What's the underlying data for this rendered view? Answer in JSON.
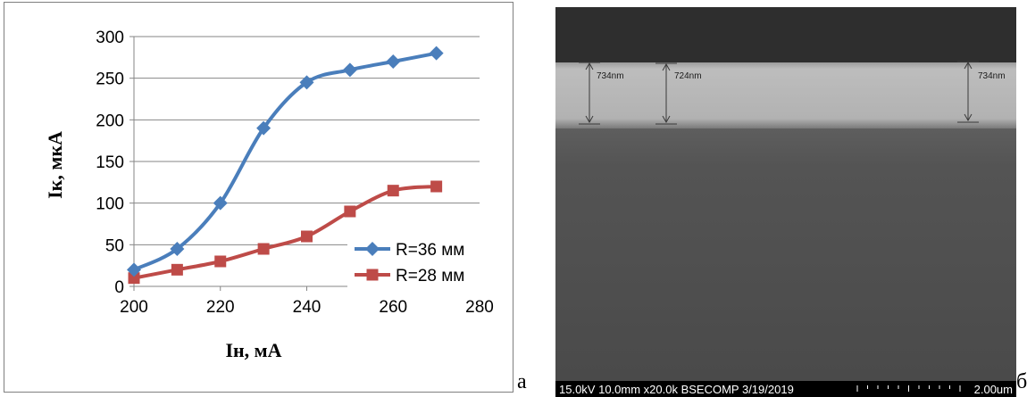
{
  "chart_data": {
    "type": "line",
    "x": [
      200,
      210,
      220,
      230,
      240,
      250,
      260,
      270
    ],
    "series": [
      {
        "name": "R=36 мм",
        "color": "#4a7ebb",
        "marker": "diamond",
        "values": [
          20,
          45,
          100,
          190,
          245,
          260,
          270,
          280
        ]
      },
      {
        "name": "R=28 мм",
        "color": "#be4b48",
        "marker": "square",
        "values": [
          10,
          20,
          30,
          45,
          60,
          90,
          115,
          120
        ]
      }
    ],
    "xlabel": "Iн, мА",
    "ylabel": "Iк, мкА",
    "xlim": [
      200,
      280
    ],
    "ylim": [
      0,
      300
    ],
    "xticks": [
      200,
      220,
      240,
      260,
      280
    ],
    "yticks": [
      0,
      50,
      100,
      150,
      200,
      250,
      300
    ],
    "grid": "horizontal",
    "legend_position": "bottom-right"
  },
  "panel_labels": {
    "left": "а",
    "right": "б"
  },
  "sem_image": {
    "measurements": [
      "734nm",
      "724nm",
      "734nm"
    ],
    "info_bar": "15.0kV 10.0mm x20.0k BSECOMP  3/19/2019",
    "scale_label": "2.00um"
  }
}
